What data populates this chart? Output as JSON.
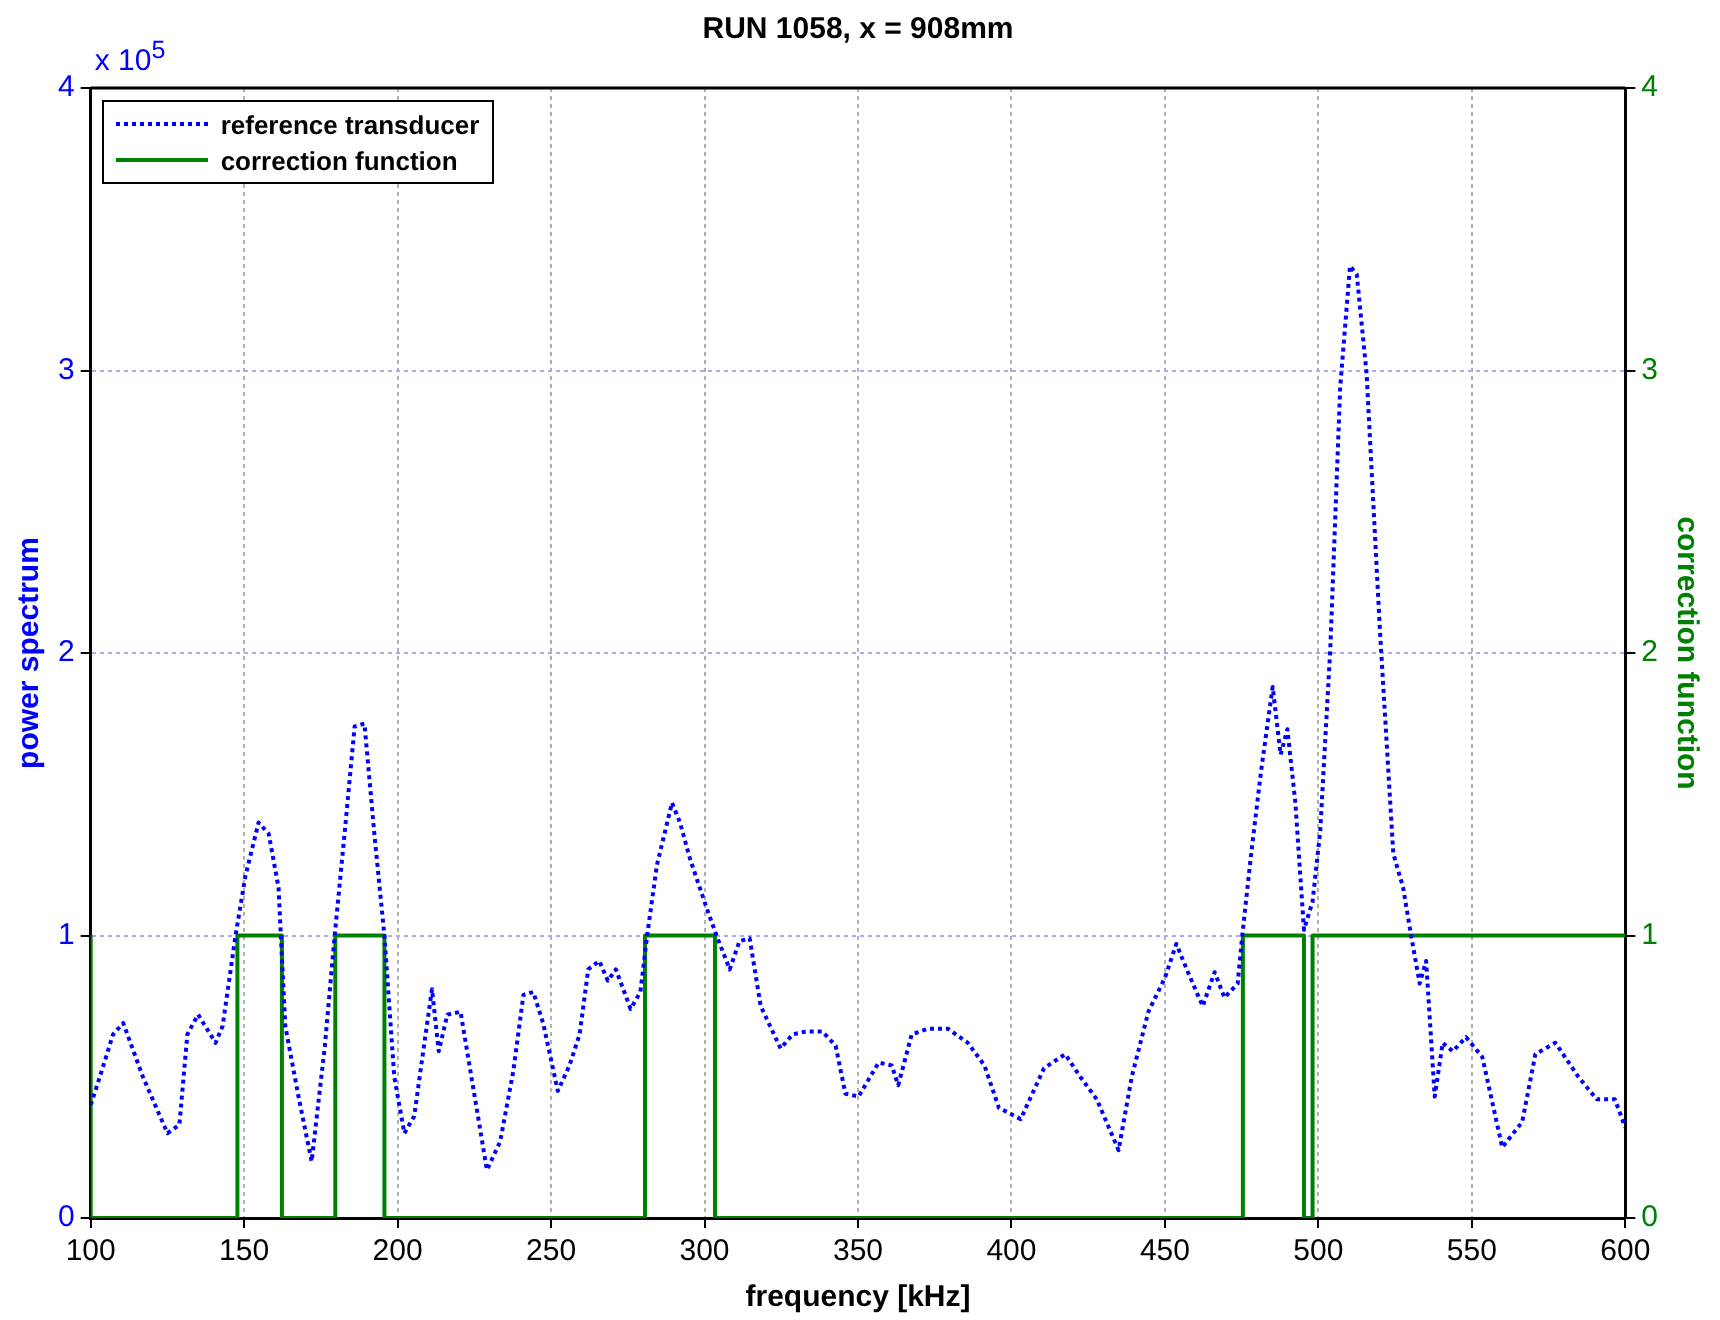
{
  "chart_data": {
    "type": "line",
    "title": "RUN 1058, x = 908mm",
    "xlabel": "frequency [kHz]",
    "ylabel": "power spectrum",
    "y2label": "correction function",
    "annotations": [
      "x 10$^{5}$"
    ],
    "xlim": [
      100,
      600
    ],
    "xticks": [
      100,
      150,
      200,
      250,
      300,
      350,
      400,
      450,
      500,
      550,
      600
    ],
    "ylim": [
      0,
      4
    ],
    "yticks": [
      0,
      1,
      2,
      3,
      4
    ],
    "y2lim": [
      0,
      4
    ],
    "y2ticks": [
      0,
      1,
      2,
      3,
      4
    ],
    "grid": true,
    "legend": "top left",
    "marker": "none",
    "series": [
      {
        "name": "reference transducer",
        "color": "#0000ff",
        "line_style": "dotted",
        "x": [
          100,
          103,
          107.3,
          110.6,
          117,
          125,
          128.9,
          131.5,
          135,
          140.7,
          143,
          147.2,
          150.4,
          154.7,
          158,
          161.2,
          163.4,
          167.7,
          172,
          176.3,
          179.5,
          182.8,
          186,
          189.2,
          192.5,
          195.7,
          198.9,
          202.2,
          205.4,
          208.6,
          211.2,
          213.4,
          216.2,
          220.5,
          224.8,
          229.1,
          233.4,
          237.7,
          241,
          244.2,
          247.4,
          252.2,
          256,
          259.3,
          262.1,
          265.7,
          268.5,
          271.1,
          275.9,
          279.1,
          281.3,
          284.5,
          289.4,
          292,
          295.3,
          300.6,
          303.9,
          308.2,
          311.4,
          314.7,
          318.3,
          324.8,
          328.7,
          333,
          338.4,
          342.7,
          345.9,
          350.2,
          356.7,
          361,
          363.1,
          367.5,
          372.8,
          379.3,
          385.8,
          391.2,
          395.9,
          403,
          410.6,
          417.5,
          422.4,
          427.8,
          434.9,
          439.2,
          444.6,
          450,
          453.7,
          457.5,
          462.3,
          466.2,
          469.4,
          473.7,
          475.2,
          478,
          481.3,
          485.1,
          487.7,
          489.9,
          492.5,
          495.3,
          498.1,
          500.6,
          503.9,
          507.1,
          510.3,
          512.5,
          515.7,
          520,
          524.4,
          527.6,
          530.2,
          533,
          535.1,
          537.9,
          540.5,
          543.8,
          548.1,
          553.4,
          559.9,
          566.4,
          570.7,
          577.2,
          584.7,
          590.7,
          596.6,
          600
        ],
        "values": [
          0.4,
          0.5,
          0.65,
          0.69,
          0.5,
          0.3,
          0.33,
          0.65,
          0.72,
          0.62,
          0.68,
          1.0,
          1.21,
          1.4,
          1.36,
          1.17,
          0.68,
          0.43,
          0.2,
          0.61,
          1.0,
          1.37,
          1.74,
          1.75,
          1.35,
          1.0,
          0.5,
          0.3,
          0.36,
          0.61,
          0.81,
          0.59,
          0.72,
          0.73,
          0.45,
          0.17,
          0.27,
          0.52,
          0.79,
          0.8,
          0.69,
          0.45,
          0.54,
          0.65,
          0.88,
          0.91,
          0.84,
          0.88,
          0.74,
          0.8,
          1.0,
          1.25,
          1.47,
          1.4,
          1.27,
          1.1,
          1.0,
          0.88,
          0.98,
          0.99,
          0.75,
          0.6,
          0.65,
          0.66,
          0.66,
          0.61,
          0.44,
          0.43,
          0.55,
          0.54,
          0.47,
          0.65,
          0.67,
          0.67,
          0.62,
          0.54,
          0.39,
          0.35,
          0.53,
          0.58,
          0.5,
          0.42,
          0.24,
          0.5,
          0.73,
          0.85,
          0.97,
          0.87,
          0.75,
          0.87,
          0.78,
          0.83,
          1.0,
          1.28,
          1.58,
          1.88,
          1.64,
          1.73,
          1.47,
          1.02,
          1.12,
          1.37,
          2.02,
          2.94,
          3.37,
          3.34,
          2.99,
          2.09,
          1.29,
          1.17,
          1.0,
          0.83,
          0.91,
          0.43,
          0.62,
          0.59,
          0.64,
          0.57,
          0.25,
          0.34,
          0.58,
          0.62,
          0.5,
          0.42,
          0.42,
          0.32
        ]
      },
      {
        "name": "correction function",
        "color": "#008000",
        "type": "step",
        "axis": "y2",
        "line_style": "solid",
        "x": [
          100,
          147.8,
          162.3,
          179.7,
          195.7,
          280.6,
          303.4,
          475.4,
          495.3,
          498.1,
          529.3,
          600
        ],
        "values": [
          1,
          0,
          1,
          0,
          1,
          0,
          1,
          0,
          1,
          0,
          1,
          1
        ]
      }
    ]
  }
}
